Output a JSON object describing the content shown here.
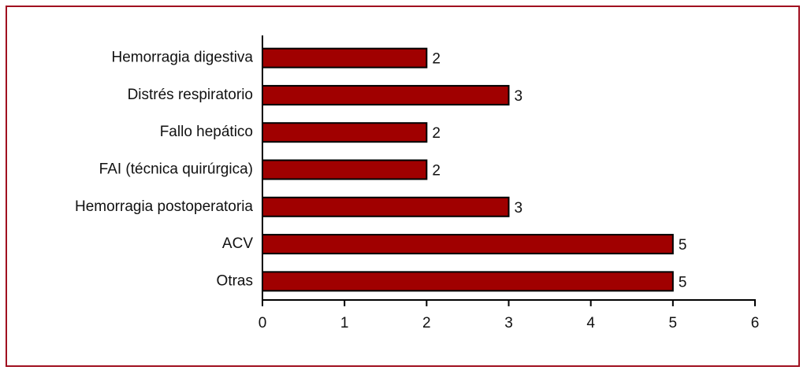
{
  "chart_data": {
    "type": "bar",
    "categories": [
      "Hemorragia digestiva",
      "Distrés respiratorio",
      "Fallo hepático",
      "FAI (técnica quirúrgica)",
      "Hemorragia postoperatoria",
      "ACV",
      "Otras"
    ],
    "values": [
      2,
      3,
      2,
      2,
      3,
      5,
      5
    ],
    "color": "#a00000",
    "xlim": [
      0,
      6
    ],
    "xticks": [
      0,
      1,
      2,
      3,
      4,
      5,
      6
    ],
    "grid": false
  }
}
